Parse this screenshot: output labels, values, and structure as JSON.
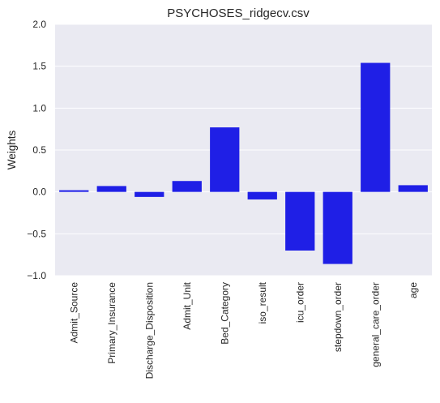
{
  "chart_data": {
    "type": "bar",
    "title": "PSYCHOSES_ridgecv.csv",
    "xlabel": "",
    "ylabel": "Weights",
    "ylim": [
      -1.0,
      2.0
    ],
    "yticks": [
      "−1.0",
      "−0.5",
      "0.0",
      "0.5",
      "1.0",
      "1.5",
      "2.0"
    ],
    "grid": true,
    "bar_color": "#1f1fe6",
    "background_color": "#eaeaf2",
    "grid_color": "#ffffff",
    "categories": [
      "Admit_Source",
      "Primary_Insurance",
      "Discharge_Disposition",
      "Admit_Unit",
      "Bed_Category",
      "iso_result",
      "icu_order",
      "stepdown_order",
      "general_care_order",
      "age"
    ],
    "values": [
      0.02,
      0.07,
      -0.06,
      0.13,
      0.77,
      -0.09,
      -0.7,
      -0.86,
      1.54,
      0.08
    ]
  }
}
